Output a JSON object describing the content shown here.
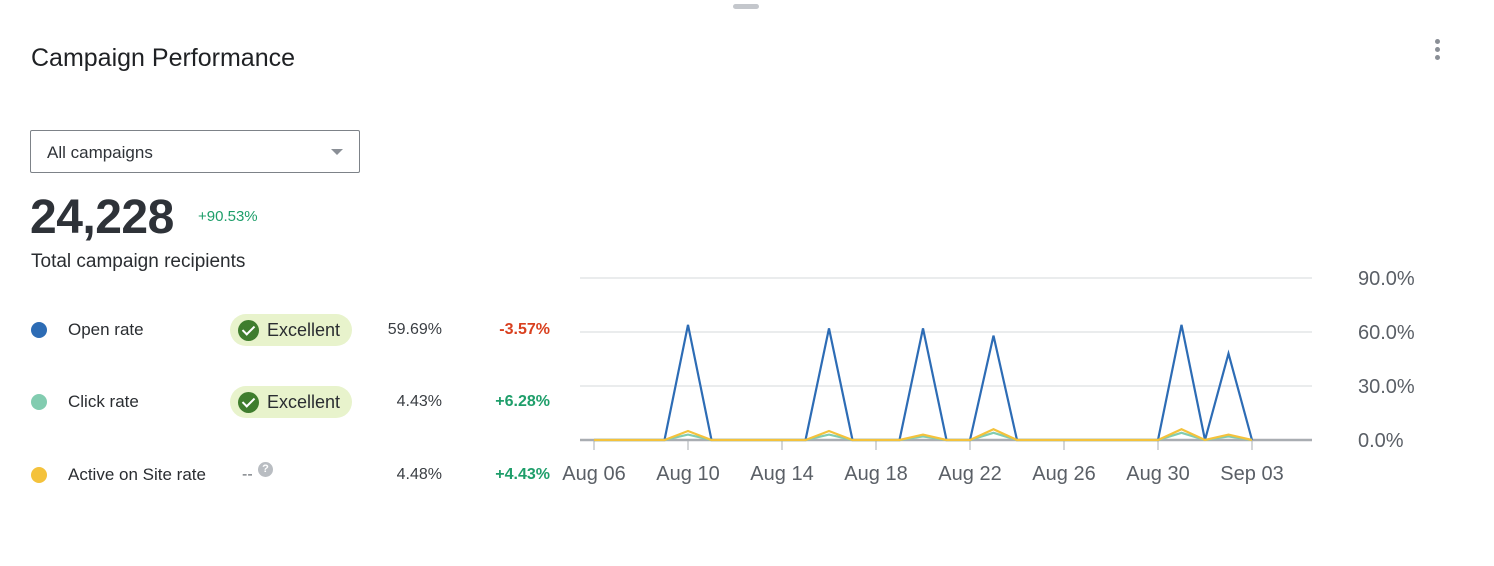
{
  "card": {
    "title": "Campaign Performance",
    "menu_icon": "kebab-menu-icon"
  },
  "filter": {
    "selected": "All campaigns"
  },
  "summary": {
    "total": "24,228",
    "change": "+90.53%",
    "label": "Total campaign recipients"
  },
  "metrics": [
    {
      "label": "Open rate",
      "color": "#2d6cb5",
      "benchmark": "Excellent",
      "value": "59.69%",
      "change": "-3.57%",
      "change_color": "#d9401f"
    },
    {
      "label": "Click rate",
      "color": "#82ccb0",
      "benchmark": "Excellent",
      "value": "4.43%",
      "change": "+6.28%",
      "change_color": "#1e9e6a"
    },
    {
      "label": "Active on Site rate",
      "color": "#f4c23c",
      "benchmark": "--",
      "help": "?",
      "value": "4.48%",
      "change": "+4.43%",
      "change_color": "#1e9e6a"
    }
  ],
  "chart_data": {
    "type": "line",
    "x": [
      "Aug 06",
      "Aug 07",
      "Aug 08",
      "Aug 09",
      "Aug 10",
      "Aug 11",
      "Aug 12",
      "Aug 13",
      "Aug 14",
      "Aug 15",
      "Aug 16",
      "Aug 17",
      "Aug 18",
      "Aug 19",
      "Aug 20",
      "Aug 21",
      "Aug 22",
      "Aug 23",
      "Aug 24",
      "Aug 25",
      "Aug 26",
      "Aug 27",
      "Aug 28",
      "Aug 29",
      "Aug 30",
      "Aug 31",
      "Sep 01",
      "Sep 02",
      "Sep 03"
    ],
    "x_tick_labels": [
      "Aug 06",
      "Aug 10",
      "Aug 14",
      "Aug 18",
      "Aug 22",
      "Aug 26",
      "Aug 30",
      "Sep 03"
    ],
    "y_tick_labels": [
      "0.0%",
      "30.0%",
      "60.0%",
      "90.0%"
    ],
    "ylim": [
      0,
      90
    ],
    "y_ticks": [
      0,
      30,
      60,
      90
    ],
    "grid": true,
    "series": [
      {
        "name": "Open rate",
        "color": "#2d6cb5",
        "values": [
          0,
          0,
          0,
          0,
          64,
          0,
          0,
          0,
          0,
          0,
          62,
          0,
          0,
          0,
          62,
          0,
          0,
          58,
          0,
          0,
          0,
          0,
          0,
          0,
          0,
          64,
          0,
          48,
          0
        ]
      },
      {
        "name": "Click rate",
        "color": "#82ccb0",
        "values": [
          0,
          0,
          0,
          0,
          3,
          0,
          0,
          0,
          0,
          0,
          3,
          0,
          0,
          0,
          2,
          0,
          0,
          4,
          0,
          0,
          0,
          0,
          0,
          0,
          0,
          4,
          0,
          2,
          0
        ]
      },
      {
        "name": "Active on Site rate",
        "color": "#f4c23c",
        "values": [
          0,
          0,
          0,
          0,
          5,
          0,
          0,
          0,
          0,
          0,
          5,
          0,
          0,
          0,
          3,
          0,
          0,
          6,
          0,
          0,
          0,
          0,
          0,
          0,
          0,
          6,
          0,
          3,
          0
        ]
      }
    ]
  }
}
